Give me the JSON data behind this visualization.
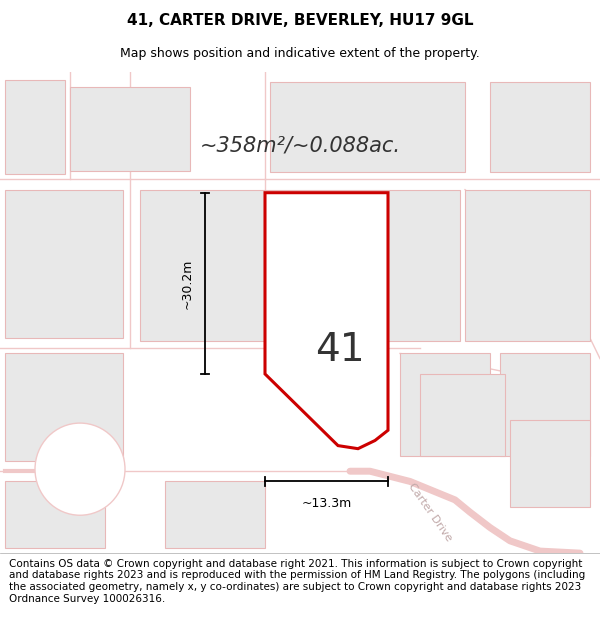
{
  "title": "41, CARTER DRIVE, BEVERLEY, HU17 9GL",
  "subtitle": "Map shows position and indicative extent of the property.",
  "area_text": "~358m²/~0.088ac.",
  "label_number": "41",
  "dim_height": "~30.2m",
  "dim_width": "~13.3m",
  "map_bg_color": "#ffffff",
  "block_fill": "#e8e8e8",
  "block_edge": "#e8b8b8",
  "road_color": "#f0c8c8",
  "plot_edge_color": "#cc0000",
  "plot_fill": "#ffffff",
  "footer_text": "Contains OS data © Crown copyright and database right 2021. This information is subject to Crown copyright and database rights 2023 and is reproduced with the permission of HM Land Registry. The polygons (including the associated geometry, namely x, y co-ordinates) are subject to Crown copyright and database rights 2023 Ordnance Survey 100026316.",
  "title_fontsize": 11,
  "subtitle_fontsize": 9,
  "footer_fontsize": 7.5,
  "label_fontsize": 28,
  "area_fontsize": 15,
  "dim_fontsize": 9,
  "carter_drive_label": "Carter Drive",
  "carter_fontsize": 8
}
